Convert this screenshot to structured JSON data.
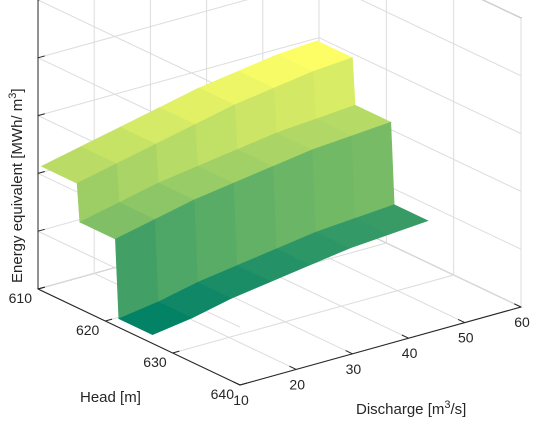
{
  "chart_data": {
    "type": "surface",
    "title": "",
    "xlabel": "Discharge [m",
    "xlabel_sup": "3",
    "xlabel_tail": "/s]",
    "ylabel": "Head [m]",
    "zlabel": "Energy equivalent [MWh/ m",
    "zlabel_sup": "3",
    "zlabel_tail": "]",
    "x_ticks": [
      "10",
      "20",
      "30",
      "40",
      "50",
      "60"
    ],
    "y_ticks": [
      "610",
      "620",
      "630",
      "640"
    ],
    "xlim": [
      10,
      60
    ],
    "ylim": [
      610,
      640
    ],
    "zlim": [
      0,
      1
    ],
    "z_ticks_labeled": false,
    "grid": true,
    "surface": {
      "colormap": "summer",
      "discharge": [
        10,
        17,
        24,
        31,
        38,
        45,
        52,
        59
      ],
      "head": [
        610.5,
        615.8,
        616.2,
        621.5,
        622,
        627
      ],
      "energy": [
        [
          0.43,
          0.46,
          0.49,
          0.52,
          0.55,
          0.57,
          0.59,
          0.6
        ],
        [
          0.43,
          0.46,
          0.49,
          0.52,
          0.55,
          0.57,
          0.59,
          0.6
        ],
        [
          0.3,
          0.33,
          0.36,
          0.38,
          0.4,
          0.42,
          0.43,
          0.44
        ],
        [
          0.3,
          0.33,
          0.36,
          0.38,
          0.4,
          0.42,
          0.43,
          0.44
        ],
        [
          0.03,
          0.05,
          0.08,
          0.1,
          0.12,
          0.14,
          0.15,
          0.16
        ],
        [
          0.03,
          0.05,
          0.08,
          0.1,
          0.12,
          0.14,
          0.15,
          0.16
        ]
      ]
    }
  }
}
